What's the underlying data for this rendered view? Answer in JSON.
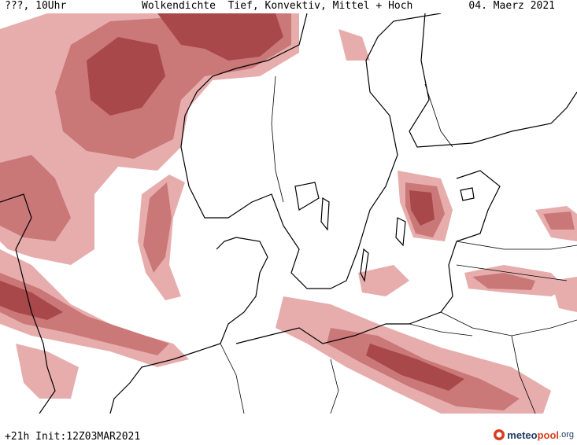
{
  "header": {
    "left": "???, 10Uhr",
    "title": "Wolkendichte  Tief, Konvektiv, Mittel + Hoch",
    "date": "04. Maerz 2021"
  },
  "footer": {
    "run": "+21h Init:12Z03MAR2021"
  },
  "logo": {
    "part1": "meteo",
    "part2": "pool",
    "part3": ".org",
    "icon": "meteopool-logo-icon"
  },
  "colors": {
    "cloud_light": "#e3a3a3",
    "cloud_mid": "#c97575",
    "cloud_dark": "#a8484a",
    "coastline": "#000000",
    "border": "#000000"
  }
}
